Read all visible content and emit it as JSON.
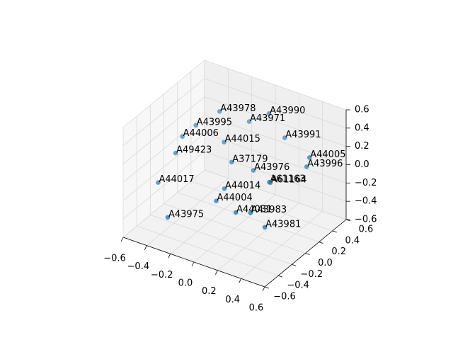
{
  "chart_data": {
    "type": "scatter3d",
    "color": "#1f77b4",
    "grid": true,
    "labels": [
      "A43978",
      "A43990",
      "A43971",
      "A43995",
      "A43991",
      "A44006",
      "A44015",
      "A49423",
      "A44005",
      "A37179",
      "A43996",
      "A43976",
      "A61163",
      "A61164",
      "A44017",
      "A44014",
      "A44004",
      "A44031",
      "A43983",
      "A43975",
      "A43981"
    ],
    "x": [
      -0.3,
      0.01,
      -0.13,
      -0.34,
      0.12,
      -0.42,
      -0.21,
      -0.42,
      0.37,
      -0.1,
      0.34,
      0.01,
      0.15,
      0.16,
      -0.47,
      -0.11,
      -0.11,
      0.05,
      0.14,
      -0.32,
      0.25
    ],
    "y": [
      0.3,
      0.49,
      0.44,
      0.02,
      0.53,
      -0.04,
      0.21,
      -0.14,
      0.46,
      0.13,
      0.47,
      0.26,
      0.25,
      0.25,
      -0.31,
      0.04,
      -0.08,
      -0.07,
      -0.01,
      -0.43,
      0.01
    ],
    "z": [
      0.36,
      0.36,
      0.24,
      0.36,
      0.12,
      0.24,
      0.12,
      0.12,
      0.06,
      0.0,
      -0.06,
      -0.12,
      -0.18,
      -0.18,
      -0.12,
      -0.24,
      -0.3,
      -0.36,
      -0.36,
      -0.36,
      -0.48
    ],
    "xlim": [
      -0.6,
      0.6
    ],
    "ylim": [
      -0.6,
      0.6
    ],
    "zlim": [
      -0.6,
      0.6
    ],
    "xticks": [
      {
        "value": -0.6,
        "label": "−0.6"
      },
      {
        "value": -0.4,
        "label": "−0.4"
      },
      {
        "value": -0.2,
        "label": "−0.2"
      },
      {
        "value": 0,
        "label": "0.0"
      },
      0.2,
      0.4,
      0.6
    ],
    "yticks": [
      {
        "value": -0.6,
        "label": "−0.6"
      },
      {
        "value": -0.4,
        "label": "−0.4"
      },
      {
        "value": -0.2,
        "label": "−0.2"
      },
      {
        "value": 0,
        "label": "0.0"
      },
      0.2,
      0.4,
      0.6
    ],
    "zticks": [
      {
        "value": -0.6,
        "label": "−0.6"
      },
      {
        "value": -0.4,
        "label": "−0.4"
      },
      {
        "value": -0.2,
        "label": "−0.2"
      },
      {
        "value": 0,
        "label": "0.0"
      },
      0.2,
      0.4,
      0.6
    ]
  }
}
